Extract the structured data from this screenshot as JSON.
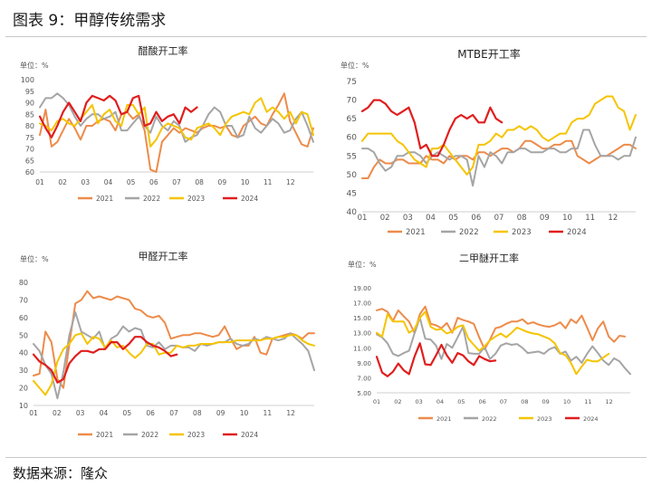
{
  "figure_title": "图表 9：甲醇传统需求",
  "source": "数据来源：隆众",
  "colors": {
    "2021": "#ED8B4A",
    "2022": "#A5A5A5",
    "2023": "#F5C400",
    "2024": "#E01E1E"
  },
  "chart_data": [
    {
      "type": "line",
      "title": "醋酸开工率",
      "unit_label": "单位：%",
      "ylim": [
        60,
        100
      ],
      "yticks": [
        60,
        65,
        70,
        75,
        80,
        85,
        90,
        95,
        100
      ],
      "xlabels": [
        "01",
        "02",
        "03",
        "04",
        "05",
        "06",
        "07",
        "08",
        "09",
        "10",
        "11",
        "12"
      ],
      "series": [
        {
          "name": "2021",
          "values": [
            76,
            87,
            71,
            73,
            78,
            83,
            79,
            74,
            80,
            80,
            82,
            83,
            82,
            78,
            85,
            86,
            83,
            85,
            78,
            61,
            60,
            73,
            76,
            79,
            77,
            79,
            78,
            77,
            79,
            80,
            80,
            79,
            80,
            76,
            75,
            80,
            82,
            84,
            81,
            80,
            85,
            89,
            94,
            82,
            77,
            72,
            71,
            79
          ]
        },
        {
          "name": "2022",
          "values": [
            88,
            92,
            92,
            94,
            92,
            89,
            84,
            80,
            83,
            85,
            85,
            83,
            84,
            86,
            78,
            78,
            81,
            84,
            80,
            77,
            84,
            80,
            78,
            82,
            80,
            73,
            75,
            76,
            80,
            85,
            88,
            86,
            80,
            80,
            75,
            76,
            84,
            79,
            77,
            80,
            83,
            81,
            77,
            78,
            83,
            86,
            80,
            73
          ]
        },
        {
          "name": "2023",
          "values": [
            81,
            80,
            78,
            82,
            83,
            81,
            80,
            83,
            86,
            89,
            81,
            85,
            87,
            82,
            80,
            89,
            89,
            85,
            88,
            71,
            74,
            79,
            81,
            80,
            79,
            75,
            74,
            79,
            80,
            81,
            79,
            76,
            81,
            84,
            85,
            86,
            85,
            90,
            92,
            86,
            88,
            86,
            83,
            86,
            81,
            86,
            85,
            76
          ]
        },
        {
          "name": "2024",
          "values": [
            84,
            79,
            75,
            80,
            86,
            90,
            86,
            82,
            90,
            93,
            92,
            91,
            93,
            91,
            85,
            86,
            92,
            93,
            80,
            81,
            86,
            82,
            84,
            85,
            81,
            88,
            86,
            88
          ]
        }
      ]
    },
    {
      "type": "line",
      "title": "MTBE开工率",
      "unit_label": "单位：%",
      "ylim": [
        40,
        75
      ],
      "yticks": [
        40,
        45,
        50,
        55,
        60,
        65,
        70,
        75
      ],
      "xlabels": [
        "01",
        "02",
        "03",
        "04",
        "05",
        "06",
        "07",
        "08",
        "09",
        "10",
        "11",
        "12"
      ],
      "series": [
        {
          "name": "2021",
          "values": [
            49,
            49,
            52,
            54,
            53,
            53,
            54,
            54,
            53,
            53,
            53,
            55,
            54,
            54,
            53,
            55,
            54,
            55,
            55,
            54,
            56,
            56,
            55,
            56,
            57,
            57,
            56,
            57,
            59,
            59,
            58,
            57,
            57,
            58,
            58,
            59,
            59,
            55,
            54,
            53,
            54,
            55,
            55,
            56,
            57,
            58,
            58,
            57
          ]
        },
        {
          "name": "2022",
          "values": [
            57,
            57,
            56,
            53,
            51,
            52,
            55,
            55,
            56,
            56,
            55,
            53,
            55,
            56,
            55,
            54,
            55,
            55,
            54,
            47,
            55,
            52,
            56,
            55,
            53,
            56,
            56,
            57,
            57,
            56,
            56,
            56,
            57,
            57,
            56,
            56,
            57,
            57,
            62,
            62,
            58,
            55,
            55,
            55,
            54,
            55,
            55,
            60
          ]
        },
        {
          "name": "2023",
          "values": [
            59,
            61,
            61,
            61,
            61,
            61,
            59,
            58,
            56,
            54,
            53,
            52,
            57,
            57,
            58,
            56,
            54,
            52,
            50,
            52,
            58,
            58,
            59,
            61,
            60,
            62,
            62,
            63,
            62,
            63,
            62,
            60,
            59,
            60,
            61,
            61,
            64,
            65,
            65,
            66,
            69,
            70,
            71,
            71,
            68,
            67,
            62,
            66
          ]
        },
        {
          "name": "2024",
          "values": [
            67,
            68,
            70,
            70,
            69,
            67,
            66,
            67,
            68,
            64,
            57,
            58,
            55,
            55,
            58,
            62,
            65,
            66,
            65,
            66,
            64,
            64,
            68,
            65,
            64
          ]
        }
      ]
    },
    {
      "type": "line",
      "title": "甲醛开工率",
      "unit_label": "单位：%",
      "ylim": [
        10,
        80
      ],
      "yticks": [
        10,
        20,
        30,
        40,
        50,
        60,
        70,
        80
      ],
      "xlabels": [
        "01",
        "02",
        "03",
        "04",
        "05",
        "06",
        "07",
        "08",
        "09",
        "10",
        "11",
        "12"
      ],
      "series": [
        {
          "name": "2021",
          "values": [
            27,
            28,
            52,
            46,
            25,
            20,
            45,
            68,
            70,
            75,
            71,
            72,
            71,
            70,
            72,
            71,
            70,
            65,
            64,
            61,
            60,
            61,
            57,
            48,
            49,
            50,
            50,
            51,
            51,
            50,
            49,
            50,
            55,
            48,
            42,
            44,
            44,
            49,
            40,
            39,
            48,
            49,
            50,
            51,
            50,
            48,
            51,
            51
          ]
        },
        {
          "name": "2022",
          "values": [
            45,
            41,
            33,
            28,
            14,
            29,
            50,
            63,
            52,
            50,
            48,
            52,
            42,
            48,
            50,
            55,
            52,
            54,
            53,
            44,
            43,
            46,
            42,
            44,
            44,
            43,
            43,
            41,
            45,
            44,
            45,
            46,
            46,
            48,
            45,
            44,
            45,
            48,
            47,
            49,
            48,
            47,
            48,
            51,
            48,
            45,
            41,
            30
          ]
        },
        {
          "name": "2023",
          "values": [
            24,
            20,
            16,
            22,
            35,
            42,
            45,
            50,
            51,
            45,
            49,
            48,
            43,
            47,
            43,
            44,
            40,
            37,
            40,
            45,
            45,
            39,
            40,
            40,
            44,
            43,
            44,
            44,
            45,
            45,
            45,
            46,
            46,
            46,
            47,
            47,
            47,
            47,
            47,
            48,
            48,
            49,
            49,
            50,
            50,
            47,
            45,
            44
          ]
        },
        {
          "name": "2024",
          "values": [
            39,
            35,
            33,
            30,
            23,
            25,
            34,
            38,
            41,
            41,
            40,
            42,
            42,
            46,
            46,
            42,
            45,
            49,
            49,
            46,
            44,
            43,
            41,
            38,
            39
          ]
        }
      ]
    },
    {
      "type": "line",
      "title": "二甲醚开工率",
      "unit_label": "单位：%",
      "ylim": [
        5,
        19
      ],
      "yticks": [
        "5.00",
        "7.00",
        "9.00",
        "11.00",
        "13.00",
        "15.00",
        "17.00",
        "19.00"
      ],
      "xlabels": [
        "01",
        "02",
        "03",
        "04",
        "05",
        "06",
        "07",
        "08",
        "09",
        "10",
        "11",
        "12"
      ],
      "series": [
        {
          "name": "2021",
          "values": [
            16,
            16.2,
            15.8,
            14.6,
            16,
            15.2,
            14.5,
            13,
            15.5,
            16.5,
            14.2,
            14,
            13.6,
            14.3,
            13,
            15,
            14.7,
            14.5,
            14.2,
            12.4,
            10.8,
            12.1,
            13.6,
            13.8,
            14.2,
            14.5,
            14.5,
            14.8,
            14.2,
            14.4,
            14.1,
            13.9,
            13.8,
            14,
            14.4,
            13.6,
            14.8,
            14.3,
            15.3,
            13.7,
            12,
            13.6,
            14.5,
            12.5,
            11.8,
            12.6,
            12.5
          ]
        },
        {
          "name": "2022",
          "values": [
            12.8,
            12.4,
            11.6,
            10.2,
            9.9,
            10.3,
            10.6,
            12.9,
            15,
            12.2,
            12.1,
            11.3,
            9.5,
            11.5,
            11,
            12.4,
            13.8,
            10.3,
            10.2,
            10.2,
            11.1,
            9.5,
            10.2,
            11.3,
            11.6,
            11.4,
            11.5,
            11,
            10.3,
            10.4,
            10.5,
            10.2,
            10.8,
            11.1,
            10.2,
            10.5,
            9.3,
            9.8,
            9,
            10.2,
            11.2,
            10.3,
            9.3,
            8.7,
            9.6,
            9.2,
            8.3,
            7.5
          ]
        },
        {
          "name": "2023",
          "values": [
            13,
            12.5,
            15.5,
            14.5,
            14.5,
            14.5,
            13,
            13.5,
            15,
            15.8,
            13.8,
            13.4,
            13.5,
            12.9,
            13.2,
            13.8,
            14,
            12.2,
            11.4,
            10.6,
            11.2,
            12,
            12.5,
            12.9,
            12.4,
            13,
            13.7,
            13.4,
            13.1,
            12.9,
            12.8,
            12.5,
            12.2,
            11.6,
            10.3,
            10,
            9,
            7.5,
            8.5,
            9.4,
            9.2,
            9.2,
            9.7,
            10.2
          ]
        },
        {
          "name": "2024",
          "values": [
            9.8,
            7.7,
            7.2,
            7.8,
            8.9,
            8,
            7.5,
            9.8,
            11.6,
            8.8,
            8.7,
            10,
            11.4,
            10,
            9,
            10.3,
            10,
            9.2,
            8.7,
            9.9,
            9.5,
            9.2,
            9.3
          ]
        }
      ]
    }
  ]
}
